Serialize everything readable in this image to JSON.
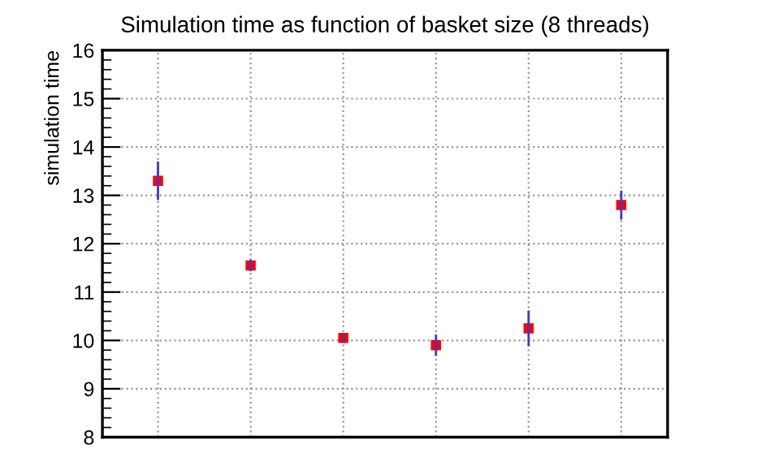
{
  "chart_data": {
    "type": "scatter",
    "title": "Simulation time as function of basket size (8 threads)",
    "ylabel": "simulation time",
    "categories": [
      null,
      null,
      null,
      null,
      null,
      null
    ],
    "series": [
      {
        "color": "#ff0000",
        "values": [
          13.3,
          11.55,
          10.05,
          9.9,
          10.25,
          12.8
        ],
        "errors": [
          0.4,
          0.12,
          0.1,
          0.22,
          0.37,
          0.3
        ]
      }
    ],
    "ylim": [
      8,
      16
    ],
    "yticks": [
      8,
      9,
      10,
      11,
      12,
      13,
      14,
      15,
      16
    ],
    "grid": true,
    "marker": "square"
  }
}
